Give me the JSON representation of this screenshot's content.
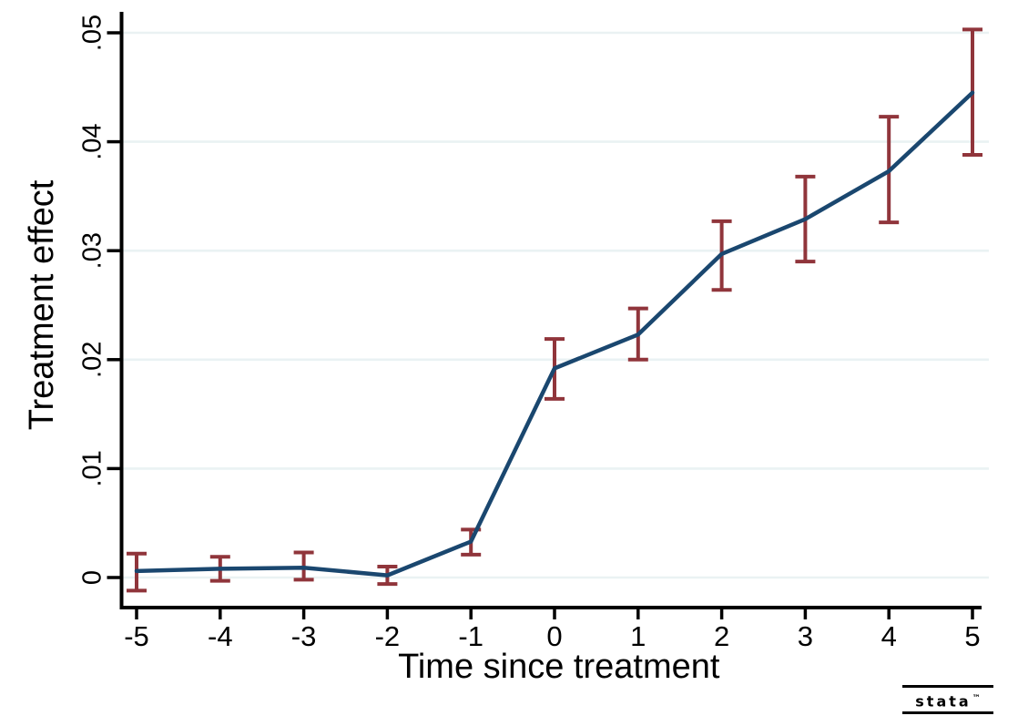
{
  "chart_data": {
    "type": "line",
    "title": "",
    "xlabel": "Time since treatment",
    "ylabel": "Treatment effect",
    "x": [
      -5,
      -4,
      -3,
      -2,
      -1,
      0,
      1,
      2,
      3,
      4,
      5
    ],
    "series": [
      {
        "name": "Treatment effect",
        "values": [
          0.0006,
          0.0008,
          0.0009,
          0.0002,
          0.0033,
          0.0192,
          0.0223,
          0.0297,
          0.0329,
          0.0373,
          0.0445
        ]
      }
    ],
    "ci_low": [
      -0.0012,
      -0.0003,
      -0.0002,
      -0.0006,
      0.0021,
      0.0164,
      0.02,
      0.0264,
      0.029,
      0.0326,
      0.0388
    ],
    "ci_high": [
      0.0022,
      0.0019,
      0.0023,
      0.001,
      0.0044,
      0.0219,
      0.0247,
      0.0327,
      0.0368,
      0.0423,
      0.0503
    ],
    "xtick_labels": [
      "-5",
      "-4",
      "-3",
      "-2",
      "-1",
      "0",
      "1",
      "2",
      "3",
      "4",
      "5"
    ],
    "ytick_labels": [
      "0",
      ".01",
      ".02",
      ".03",
      ".04",
      ".05"
    ],
    "ytick_values": [
      0,
      0.01,
      0.02,
      0.03,
      0.04,
      0.05
    ],
    "xlim": [
      -5.19,
      5.11
    ],
    "ylim": [
      -0.0028,
      0.0518
    ],
    "grid": true,
    "legend_position": "none",
    "colors": {
      "line": "#1A476F",
      "ci": "#90353B",
      "grid": "#EAF2F3",
      "axis": "#000000",
      "text": "#000000",
      "background": "#FFFFFF"
    }
  },
  "branding": {
    "logo_text": "stata",
    "logo_tm": "™"
  }
}
